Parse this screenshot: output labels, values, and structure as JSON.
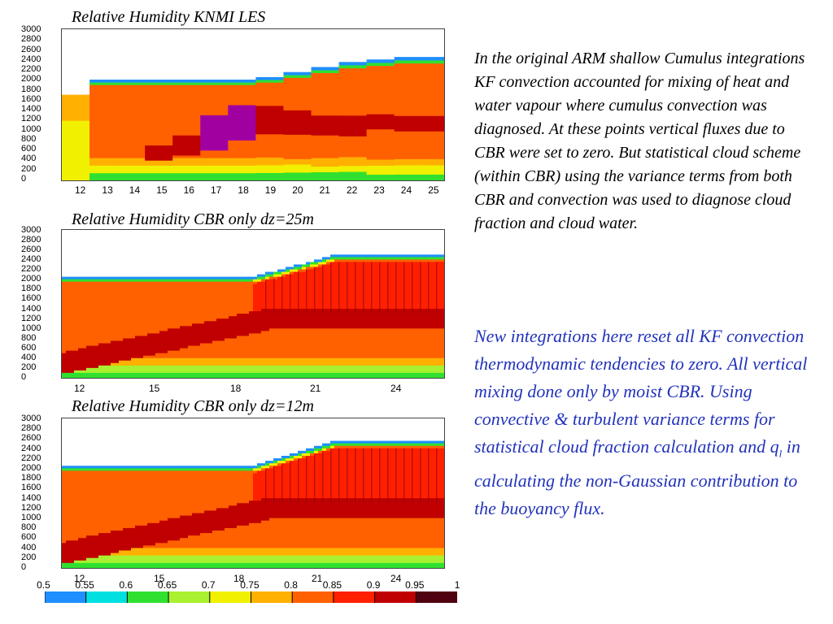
{
  "panels": [
    {
      "title": "Relative Humidity KNMI LES",
      "y_ticks": [
        "3000",
        "2800",
        "2600",
        "2400",
        "2200",
        "2000",
        "1800",
        "1600",
        "1400",
        "1200",
        "1000",
        "800",
        "600",
        "400",
        "200",
        "0"
      ],
      "x_ticks": [
        "12",
        "13",
        "14",
        "15",
        "16",
        "17",
        "18",
        "19",
        "20",
        "21",
        "22",
        "23",
        "24",
        "25"
      ]
    },
    {
      "title": "Relative Humidity CBR only dz=25m",
      "y_ticks": [
        "3000",
        "2800",
        "2600",
        "2400",
        "2200",
        "2000",
        "1800",
        "1600",
        "1400",
        "1200",
        "1000",
        "800",
        "600",
        "400",
        "200",
        "0"
      ],
      "x_ticks": [
        "12",
        "15",
        "18",
        "21",
        "24"
      ]
    },
    {
      "title": "Relative Humidity CBR only dz=12m",
      "y_ticks": [
        "3000",
        "2800",
        "2600",
        "2400",
        "2200",
        "2000",
        "1800",
        "1600",
        "1400",
        "1200",
        "1000",
        "800",
        "600",
        "400",
        "200",
        "0"
      ],
      "x_ticks": [
        "12",
        "15",
        "18",
        "21",
        "24"
      ]
    }
  ],
  "colorbar": {
    "labels": [
      "0.5",
      "0.55",
      "0.6",
      "0.65",
      "0.7",
      "0.75",
      "0.8",
      "0.85",
      "0.9",
      "0.95",
      "1"
    ],
    "colors": [
      "#1f8fff",
      "#00e0e0",
      "#30e030",
      "#a8f030",
      "#f0f000",
      "#ffb000",
      "#ff6000",
      "#ff2000",
      "#c00000",
      "#500010",
      "#a000a0"
    ]
  },
  "text": {
    "para1": "In the original ARM shallow Cumulus integrations KF convection accounted for mixing of heat and water vapour where cumulus convection was diagnosed. At these points vertical fluxes due to CBR were set to zero. But statistical cloud scheme (within CBR) using the variance terms from both CBR and convection was used to diagnose cloud fraction and cloud water.",
    "para2_a": "New integrations here reset all KF convection thermodynamic tendencies to zero. All vertical mixing done only by moist CBR. Using convective & turbulent variance terms for statistical cloud fraction calculation and q",
    "para2_sub": "l",
    "para2_b": " in calculating the non-Gaussian contribution to the buoyancy flux."
  },
  "chart_data": [
    {
      "type": "heatmap",
      "title": "Relative Humidity KNMI LES",
      "x": [
        12,
        13,
        14,
        15,
        16,
        17,
        18,
        19,
        20,
        21,
        22,
        23,
        24,
        25
      ],
      "xlim": [
        11.5,
        25.3
      ],
      "ylim": [
        0,
        3000
      ],
      "z_range": [
        0.5,
        1.0
      ],
      "boundary_layer_top_m": [
        1700,
        2000,
        2000,
        2000,
        2000,
        2000,
        2000,
        2050,
        2150,
        2250,
        2350,
        2400,
        2450,
        2450
      ],
      "saturated_layer_m": [
        [
          0,
          0
        ],
        [
          0,
          0
        ],
        [
          0,
          0
        ],
        [
          400,
          700
        ],
        [
          500,
          900
        ],
        [
          600,
          1300
        ],
        [
          800,
          1500
        ],
        [
          900,
          1500
        ],
        [
          900,
          1400
        ],
        [
          900,
          1300
        ],
        [
          900,
          1300
        ],
        [
          1000,
          1300
        ],
        [
          1000,
          1300
        ],
        [
          1000,
          1300
        ]
      ]
    },
    {
      "type": "heatmap",
      "title": "Relative Humidity CBR only dz=25m",
      "x_ticks": [
        12,
        15,
        18,
        21,
        24
      ],
      "xlim": [
        11.5,
        25.8
      ],
      "ylim": [
        0,
        3000
      ],
      "z_range": [
        0.5,
        1.0
      ],
      "boundary_layer_top_m": [
        2050,
        2050,
        2050,
        2050,
        2100,
        2350,
        2450,
        2500,
        2500,
        2500
      ]
    },
    {
      "type": "heatmap",
      "title": "Relative Humidity CBR only dz=12m",
      "x_ticks": [
        12,
        15,
        18,
        21,
        24
      ],
      "xlim": [
        11.5,
        25.8
      ],
      "ylim": [
        0,
        3000
      ],
      "z_range": [
        0.5,
        1.0
      ],
      "boundary_layer_top_m": [
        2050,
        2050,
        2050,
        2050,
        2150,
        2400,
        2500,
        2550,
        2550,
        2550
      ]
    }
  ]
}
